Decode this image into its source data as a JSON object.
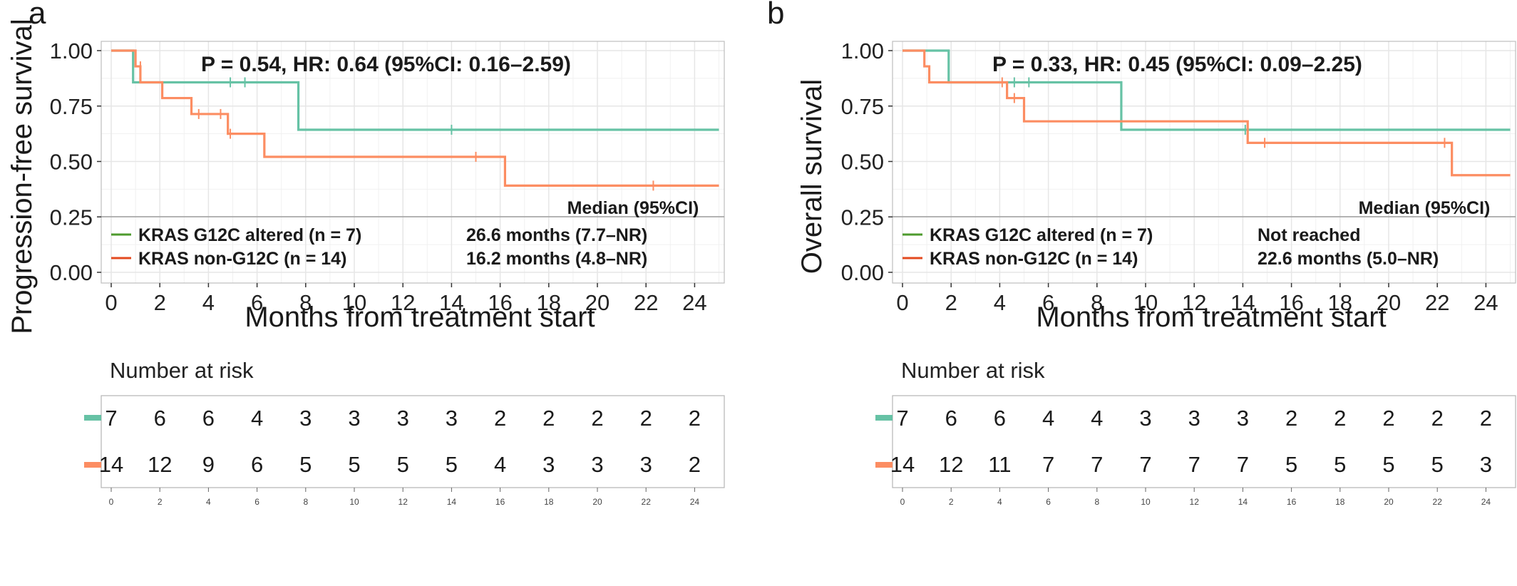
{
  "colors": {
    "altered": "#66c2a5",
    "non_g12c": "#fc8d62",
    "legend_altered": "#4d9a2d",
    "legend_non": "#e34a1f",
    "grid": "#e6e6e6",
    "panel_border": "#bdbdbd",
    "median_line": "#9e9e9e"
  },
  "panels": [
    {
      "letter": "a",
      "stat_text": "P = 0.54, HR: 0.64 (95%CI: 0.16–2.59)",
      "median_header": "Median (95%CI)",
      "legend": [
        {
          "label": "KRAS G12C altered (n = 7)",
          "median": "26.6 months (7.7–NR)"
        },
        {
          "label": "KRAS non-G12C (n = 14)",
          "median": "16.2 months (4.8–NR)"
        }
      ],
      "risk_title": "Number at risk",
      "risk_altered": [
        "7",
        "6",
        "6",
        "4",
        "3",
        "3",
        "3",
        "3",
        "2",
        "2",
        "2",
        "2",
        "2"
      ],
      "risk_non": [
        "14",
        "12",
        "9",
        "6",
        "5",
        "5",
        "5",
        "5",
        "4",
        "3",
        "3",
        "3",
        "2"
      ],
      "chart_data": {
        "type": "line",
        "ylabel": "Progression-free survival",
        "xlabel": "Months from treatment start",
        "xlim": [
          0,
          25
        ],
        "ylim": [
          0,
          1
        ],
        "x_ticks": [
          0,
          2,
          4,
          6,
          8,
          10,
          12,
          14,
          16,
          18,
          20,
          22,
          24
        ],
        "y_ticks": [
          "0.00",
          "0.25",
          "0.50",
          "0.75",
          "1.00"
        ],
        "series": [
          {
            "name": "KRAS G12C altered (n = 7)",
            "steps": [
              [
                0,
                1.0
              ],
              [
                0.9,
                0.857
              ],
              [
                7.7,
                0.643
              ],
              [
                25,
                0.643
              ]
            ],
            "censor": [
              [
                4.9,
                0.857
              ],
              [
                5.5,
                0.857
              ],
              [
                14.0,
                0.643
              ]
            ]
          },
          {
            "name": "KRAS non-G12C (n = 14)",
            "steps": [
              [
                0,
                1.0
              ],
              [
                1.0,
                0.929
              ],
              [
                1.2,
                0.857
              ],
              [
                2.1,
                0.786
              ],
              [
                3.3,
                0.714
              ],
              [
                4.8,
                0.625
              ],
              [
                6.3,
                0.521
              ],
              [
                16.2,
                0.391
              ],
              [
                25,
                0.391
              ]
            ],
            "censor": [
              [
                1.2,
                0.929
              ],
              [
                3.6,
                0.714
              ],
              [
                4.5,
                0.714
              ],
              [
                4.9,
                0.625
              ],
              [
                15.0,
                0.521
              ],
              [
                22.3,
                0.391
              ]
            ]
          }
        ]
      }
    },
    {
      "letter": "b",
      "stat_text": "P = 0.33, HR: 0.45 (95%CI: 0.09–2.25)",
      "median_header": "Median (95%CI)",
      "legend": [
        {
          "label": "KRAS G12C altered (n = 7)",
          "median": "Not reached"
        },
        {
          "label": "KRAS non-G12C (n = 14)",
          "median": "22.6 months (5.0–NR)"
        }
      ],
      "risk_title": "Number at risk",
      "risk_altered": [
        "7",
        "6",
        "6",
        "4",
        "4",
        "3",
        "3",
        "3",
        "2",
        "2",
        "2",
        "2",
        "2"
      ],
      "risk_non": [
        "14",
        "12",
        "11",
        "7",
        "7",
        "7",
        "7",
        "7",
        "5",
        "5",
        "5",
        "5",
        "3"
      ],
      "chart_data": {
        "type": "line",
        "ylabel": "Overall survival",
        "xlabel": "Months from treatment start",
        "xlim": [
          0,
          25
        ],
        "ylim": [
          0,
          1
        ],
        "x_ticks": [
          0,
          2,
          4,
          6,
          8,
          10,
          12,
          14,
          16,
          18,
          20,
          22,
          24
        ],
        "y_ticks": [
          "0.00",
          "0.25",
          "0.50",
          "0.75",
          "1.00"
        ],
        "series": [
          {
            "name": "KRAS G12C altered (n = 7)",
            "steps": [
              [
                0,
                1.0
              ],
              [
                1.9,
                0.857
              ],
              [
                9.0,
                0.643
              ],
              [
                25,
                0.643
              ]
            ],
            "censor": [
              [
                4.6,
                0.857
              ],
              [
                5.2,
                0.857
              ],
              [
                14.1,
                0.643
              ]
            ]
          },
          {
            "name": "KRAS non-G12C (n = 14)",
            "steps": [
              [
                0,
                1.0
              ],
              [
                0.9,
                0.929
              ],
              [
                1.1,
                0.857
              ],
              [
                4.3,
                0.786
              ],
              [
                5.0,
                0.681
              ],
              [
                14.2,
                0.584
              ],
              [
                22.6,
                0.438
              ],
              [
                25,
                0.438
              ]
            ],
            "censor": [
              [
                4.1,
                0.857
              ],
              [
                4.6,
                0.786
              ],
              [
                14.9,
                0.584
              ],
              [
                22.3,
                0.584
              ]
            ]
          }
        ]
      }
    }
  ]
}
